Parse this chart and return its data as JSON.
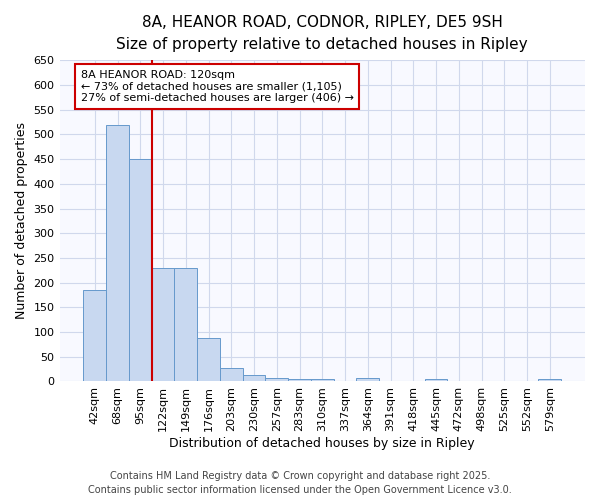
{
  "title_line1": "8A, HEANOR ROAD, CODNOR, RIPLEY, DE5 9SH",
  "title_line2": "Size of property relative to detached houses in Ripley",
  "xlabel": "Distribution of detached houses by size in Ripley",
  "ylabel": "Number of detached properties",
  "categories": [
    "42sqm",
    "68sqm",
    "95sqm",
    "122sqm",
    "149sqm",
    "176sqm",
    "203sqm",
    "230sqm",
    "257sqm",
    "283sqm",
    "310sqm",
    "337sqm",
    "364sqm",
    "391sqm",
    "418sqm",
    "445sqm",
    "472sqm",
    "498sqm",
    "525sqm",
    "552sqm",
    "579sqm"
  ],
  "values": [
    185,
    519,
    450,
    230,
    230,
    87,
    27,
    14,
    7,
    5,
    5,
    0,
    7,
    0,
    0,
    5,
    0,
    0,
    0,
    0,
    4
  ],
  "bar_color": "#c8d8f0",
  "bar_edge_color": "#6699cc",
  "grid_color": "#d0d8ec",
  "vline_x": 2.5,
  "vline_color": "#cc0000",
  "annotation_text": "8A HEANOR ROAD: 120sqm\n← 73% of detached houses are smaller (1,105)\n27% of semi-detached houses are larger (406) →",
  "annotation_box_facecolor": "#ffffff",
  "annotation_box_edgecolor": "#cc0000",
  "ylim": [
    0,
    650
  ],
  "yticks": [
    0,
    50,
    100,
    150,
    200,
    250,
    300,
    350,
    400,
    450,
    500,
    550,
    600,
    650
  ],
  "footer_line1": "Contains HM Land Registry data © Crown copyright and database right 2025.",
  "footer_line2": "Contains public sector information licensed under the Open Government Licence v3.0.",
  "bg_color": "#ffffff",
  "plot_bg_color": "#f8f9ff",
  "title_fontsize": 11,
  "subtitle_fontsize": 10,
  "tick_fontsize": 8,
  "label_fontsize": 9,
  "annot_fontsize": 8,
  "footer_fontsize": 7
}
